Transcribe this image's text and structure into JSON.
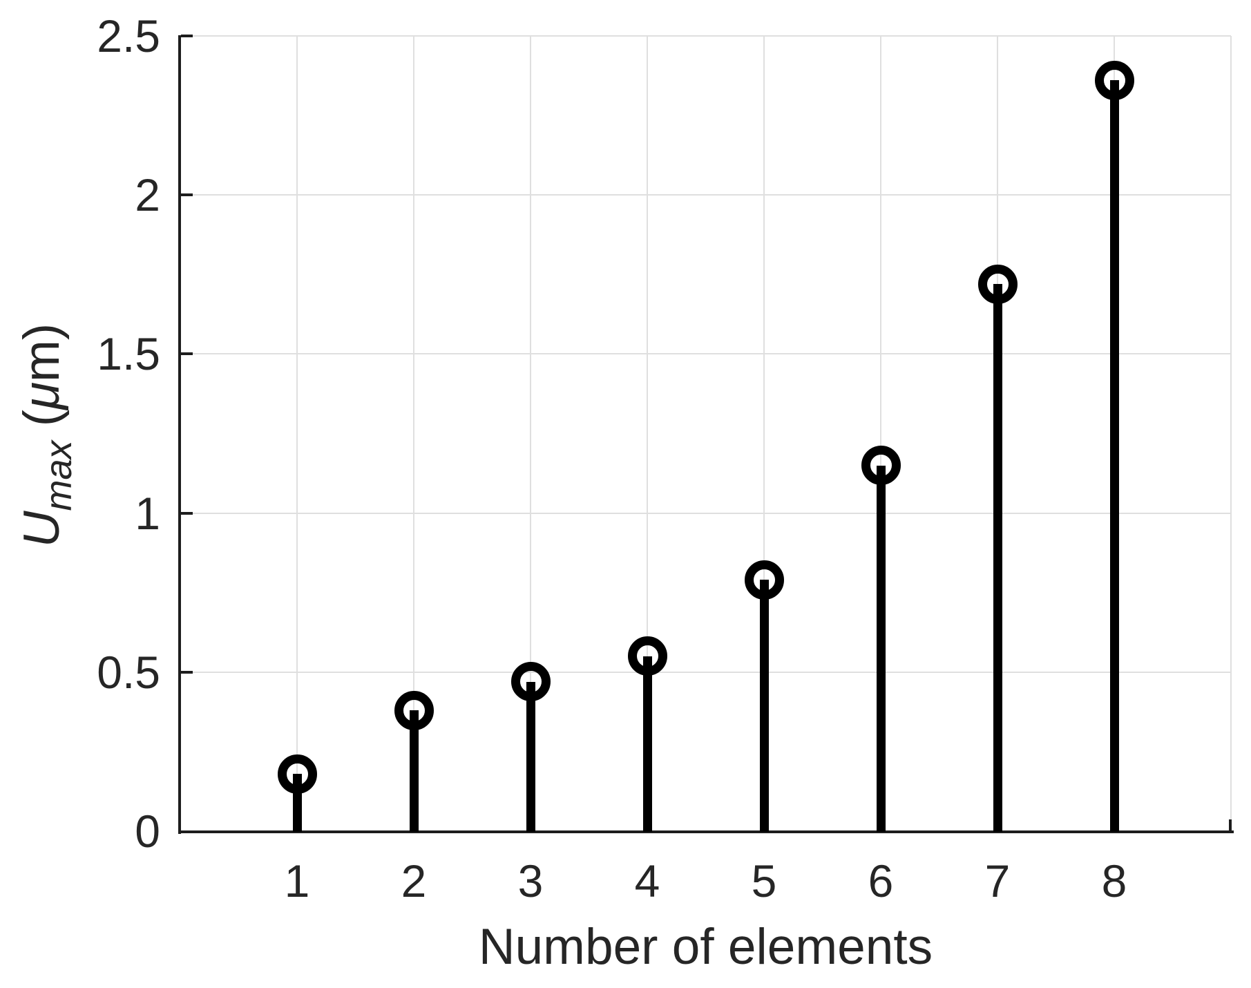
{
  "figure": {
    "background": "#ffffff",
    "text_color": "#262626",
    "axis_color": "#1d1d1d",
    "grid_color": "#dfdfdf",
    "stem_color": "#000000"
  },
  "chart_data": {
    "type": "scatter",
    "style": "stem-plot-vertical-lines-with-open-circle-markers",
    "title": "",
    "xlabel": "Number of elements",
    "ylabel": "U_max (μm)",
    "ylabel_parts": {
      "variable": "U",
      "subscript": "max",
      "unit_open": " (",
      "unit_mu": "μ",
      "unit_close": "m)"
    },
    "x": [
      1,
      2,
      3,
      4,
      5,
      6,
      7,
      8
    ],
    "y": [
      0.18,
      0.38,
      0.47,
      0.55,
      0.79,
      1.15,
      1.72,
      2.36
    ],
    "xticks": [
      1,
      2,
      3,
      4,
      5,
      6,
      7,
      8
    ],
    "xtick_labels": [
      "1",
      "2",
      "3",
      "4",
      "5",
      "6",
      "7",
      "8"
    ],
    "yticks": [
      0,
      0.5,
      1,
      1.5,
      2,
      2.5
    ],
    "ytick_labels": [
      "0",
      "0.5",
      "1",
      "1.5",
      "2",
      "2.5"
    ],
    "xlim": [
      0,
      9
    ],
    "ylim": [
      0,
      2.5
    ],
    "grid": true,
    "legend": null,
    "marker": "open-circle"
  }
}
